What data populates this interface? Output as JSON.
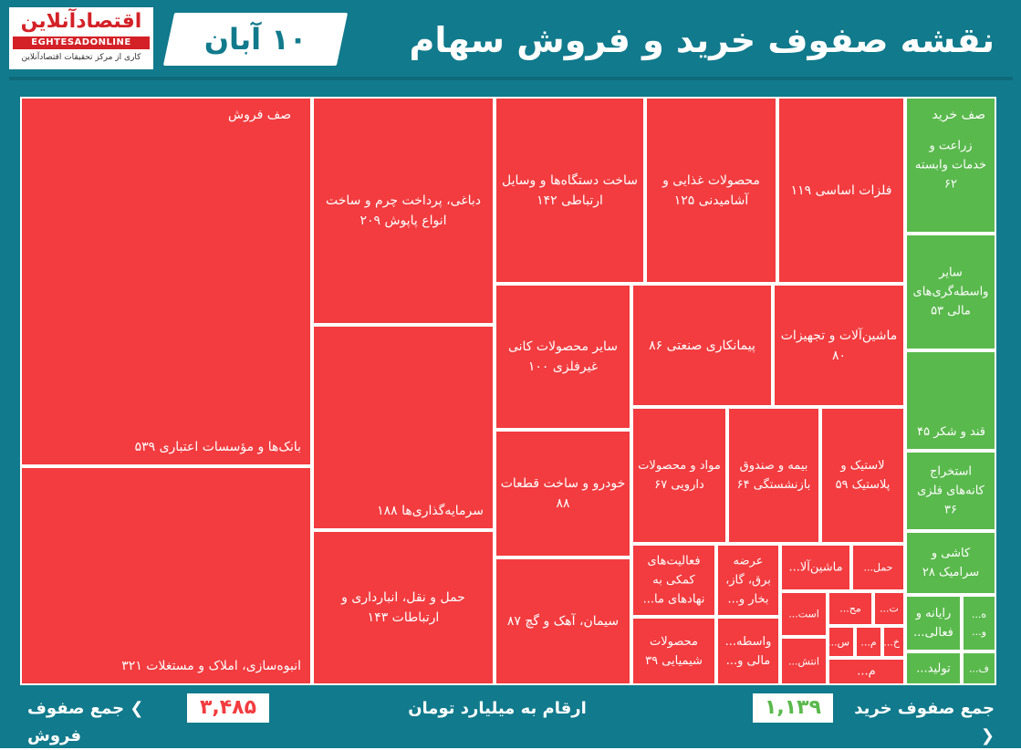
{
  "header": {
    "title": "نقشه صفوف خرید و فروش سهام",
    "date": "۱۰ آبان"
  },
  "logo": {
    "name": "اقتصادآنلاین",
    "latin": "EGHTESADONLINE",
    "tagline": "کاری از مرکز تحقیقات اقتصادآنلاین"
  },
  "footer": {
    "buy_label": "جمع صفوف خرید ❮",
    "buy_total": "۱,۱۳۹",
    "unit_note": "ارقام به میلیارد تومان",
    "sell_total": "۳,۴۸۵",
    "sell_label": "❯ جمع صفوف فروش"
  },
  "colors": {
    "sell": "#f23c3f",
    "buy": "#5ab94d",
    "frame": "#117a8c"
  },
  "chart_data": {
    "type": "treemap",
    "sell_title": "صف فروش",
    "buy_title": "صف خرید",
    "sell": [
      {
        "label": "بانک‌ها و مؤسسات اعتباری ۵۳۹",
        "value": 539
      },
      {
        "label": "انبوه‌سازی، املاک و مستغلات ۳۲۱",
        "value": 321
      },
      {
        "label": "دباغی، پرداخت چرم و ساخت انواع پاپوش ۲۰۹",
        "value": 209
      },
      {
        "label": "سرمایه‌گذاری‌ها ۱۸۸",
        "value": 188
      },
      {
        "label": "حمل و نقل، انبارداری و ارتباطات ۱۴۳",
        "value": 143
      },
      {
        "label": "ساخت دستگاه‌ها و وسایل ارتباطی ۱۴۲",
        "value": 142
      },
      {
        "label": "محصولات غذایی و آشامیدنی ۱۲۵",
        "value": 125
      },
      {
        "label": "فلزات اساسی ۱۱۹",
        "value": 119
      },
      {
        "label": "سایر محصولات کانی غیرفلزی ۱۰۰",
        "value": 100
      },
      {
        "label": "پیمانکاری صنعتی ۸۶",
        "value": 86
      },
      {
        "label": "ماشین‌آلات و تجهیزات ۸۰",
        "value": 80
      },
      {
        "label": "خودرو و ساخت قطعات ۸۸",
        "value": 88
      },
      {
        "label": "سیمان، آهک و گچ ۸۷",
        "value": 87
      },
      {
        "label": "مواد و محصولات دارویی ۶۷",
        "value": 67
      },
      {
        "label": "بیمه و صندوق بازنشستگی ۶۴",
        "value": 64
      },
      {
        "label": "لاستیک و پلاستیک ۵۹",
        "value": 59
      },
      {
        "label": "فعالیت‌های کمکی به نهادهای ما...",
        "value": null
      },
      {
        "label": "عرضه برق، گاز، بخار و...",
        "value": null
      },
      {
        "label": "ماشین‌آلا...",
        "value": null
      },
      {
        "label": "حمل...",
        "value": null
      },
      {
        "label": "محصولات شیمیایی ۳۹",
        "value": 39
      },
      {
        "label": "واسطه... مالی و...",
        "value": null
      },
      {
        "label": "است...",
        "value": null
      },
      {
        "label": "مح...",
        "value": null
      },
      {
        "label": "ت...",
        "value": null
      },
      {
        "label": "انتش...",
        "value": null
      },
      {
        "label": "س...",
        "value": null
      },
      {
        "label": "م...",
        "value": null
      },
      {
        "label": "خ...",
        "value": null
      },
      {
        "label": "م...",
        "value": null
      }
    ],
    "buy": [
      {
        "label": "زراعت و خدمات وابسته ۶۲",
        "value": 62
      },
      {
        "label": "سایر واسطه‌گری‌های مالی ۵۳",
        "value": 53
      },
      {
        "label": "قند و شکر ۴۵",
        "value": 45
      },
      {
        "label": "استخراج کانه‌های فلزی ۳۶",
        "value": 36
      },
      {
        "label": "کاشی و سرامیک ۲۸",
        "value": 28
      },
      {
        "label": "رایانه و فعالی...",
        "value": null
      },
      {
        "label": "ه... و...",
        "value": null
      },
      {
        "label": "تولید...",
        "value": null
      },
      {
        "label": "ف...",
        "value": null
      }
    ]
  }
}
